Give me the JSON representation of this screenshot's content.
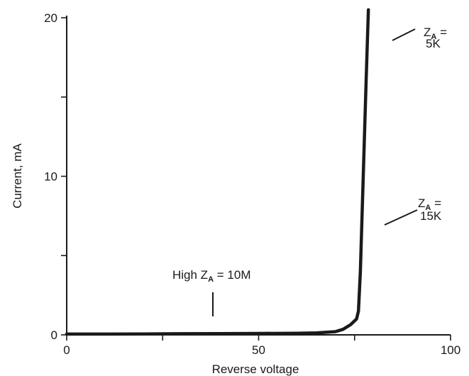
{
  "chart_data": {
    "type": "line",
    "title": "",
    "xlabel": "Reverse voltage",
    "ylabel": "Current, mA",
    "xlim": [
      0,
      100
    ],
    "ylim": [
      0,
      20
    ],
    "x_ticks": [
      0,
      25,
      50,
      75,
      100
    ],
    "x_tick_labels": [
      "0",
      "",
      "50",
      "",
      "100"
    ],
    "y_ticks": [
      0,
      5,
      10,
      15,
      20
    ],
    "y_tick_labels": [
      "0",
      "",
      "10",
      "",
      "20"
    ],
    "grid": false,
    "series": [
      {
        "points": [
          [
            0,
            0.05
          ],
          [
            10,
            0.05
          ],
          [
            20,
            0.06
          ],
          [
            30,
            0.07
          ],
          [
            40,
            0.08
          ],
          [
            50,
            0.09
          ],
          [
            60,
            0.1
          ],
          [
            65,
            0.12
          ],
          [
            70,
            0.2
          ],
          [
            72,
            0.35
          ],
          [
            74,
            0.65
          ],
          [
            75.5,
            1.0
          ],
          [
            76,
            1.5
          ],
          [
            76.5,
            4
          ],
          [
            77,
            8
          ],
          [
            77.5,
            12
          ],
          [
            78,
            16
          ],
          [
            78.6,
            20.5
          ]
        ]
      }
    ],
    "annotations": [
      {
        "main": "High Z",
        "sub": "A",
        "rest": " = 10M",
        "x": 38,
        "y": 1.0
      },
      {
        "main": "Z",
        "sub": "A",
        "rest": " =",
        "line2": "5K",
        "x": 81.5,
        "y": 18.6
      },
      {
        "main": "Z",
        "sub": "A",
        "rest": " =",
        "line2": "15K",
        "x": 83,
        "y": 7.3
      }
    ]
  }
}
